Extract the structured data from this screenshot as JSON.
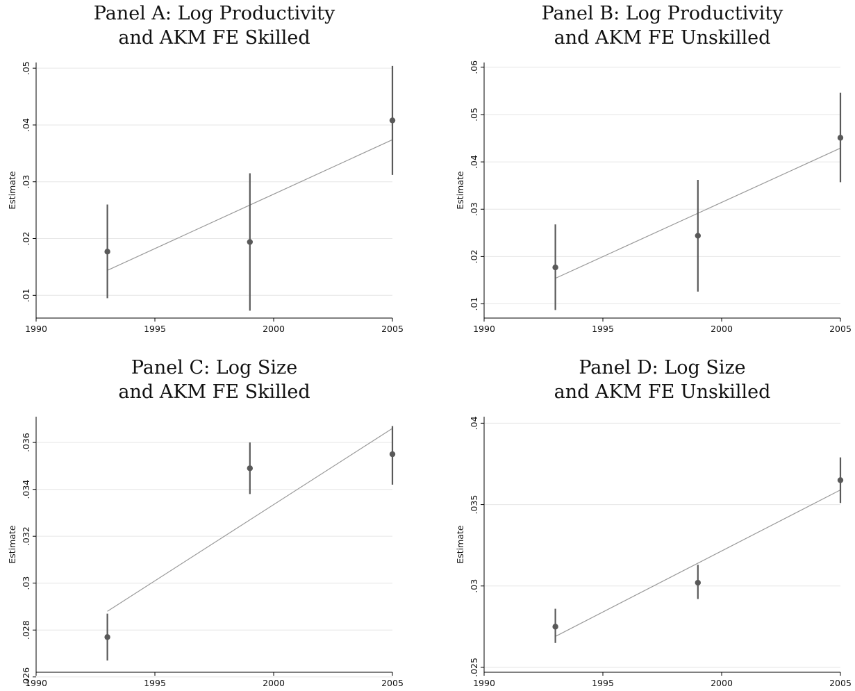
{
  "colors": {
    "marker": "#595959",
    "ci": "#595959",
    "fit": "#999999",
    "grid": "#e6e6e6",
    "axis": "#000000"
  },
  "chart_data": [
    {
      "type": "scatter",
      "title": "Panel A: Log Productivity\nand AKM FE Skilled",
      "ylabel": "Estimate",
      "xlabel": "",
      "xlim": [
        1990,
        2005
      ],
      "ylim": [
        0.006,
        0.051
      ],
      "xticks": [
        1990,
        1995,
        2000,
        2005
      ],
      "xtick_labels": [
        "1990",
        "1995",
        "2000",
        "2005"
      ],
      "yticks": [
        0.01,
        0.02,
        0.03,
        0.04,
        0.05
      ],
      "ytick_labels": [
        ".01",
        ".02",
        ".03",
        ".04",
        ".05"
      ],
      "grid": true,
      "points": [
        {
          "x": 1993,
          "y": 0.0177,
          "lo": 0.0095,
          "hi": 0.026
        },
        {
          "x": 1999,
          "y": 0.0194,
          "lo": 0.0073,
          "hi": 0.0315
        },
        {
          "x": 2005,
          "y": 0.0408,
          "lo": 0.0312,
          "hi": 0.0504
        }
      ],
      "fit": {
        "x": [
          1993,
          2005
        ],
        "y": [
          0.0144,
          0.0374
        ]
      }
    },
    {
      "type": "scatter",
      "title": "Panel B: Log Productivity\nand AKM FE Unskilled",
      "ylabel": "Estimate",
      "xlabel": "",
      "xlim": [
        1990,
        2005
      ],
      "ylim": [
        0.007,
        0.061
      ],
      "xticks": [
        1990,
        1995,
        2000,
        2005
      ],
      "xtick_labels": [
        "1990",
        "1995",
        "2000",
        "2005"
      ],
      "yticks": [
        0.01,
        0.02,
        0.03,
        0.04,
        0.05,
        0.06
      ],
      "ytick_labels": [
        ".01",
        ".02",
        ".03",
        ".04",
        ".05",
        ".06"
      ],
      "grid": true,
      "points": [
        {
          "x": 1993,
          "y": 0.0177,
          "lo": 0.0087,
          "hi": 0.0268
        },
        {
          "x": 1999,
          "y": 0.0244,
          "lo": 0.0126,
          "hi": 0.0362
        },
        {
          "x": 2005,
          "y": 0.0451,
          "lo": 0.0357,
          "hi": 0.0546
        }
      ],
      "fit": {
        "x": [
          1993,
          2005
        ],
        "y": [
          0.0154,
          0.0429
        ]
      }
    },
    {
      "type": "scatter",
      "title": "Panel C: Log Size\nand AKM FE Skilled",
      "ylabel": "Estimate",
      "xlabel": "",
      "xlim": [
        1990,
        2005
      ],
      "ylim": [
        0.0262,
        0.0371
      ],
      "xticks": [
        1990,
        1995,
        2000,
        2005
      ],
      "xtick_labels": [
        "1990",
        "1995",
        "2000",
        "2005"
      ],
      "yticks": [
        0.026,
        0.028,
        0.03,
        0.032,
        0.034,
        0.036
      ],
      "ytick_labels": [
        ".026",
        ".028",
        ".03",
        ".032",
        ".034",
        ".036"
      ],
      "grid": true,
      "points": [
        {
          "x": 1993,
          "y": 0.0277,
          "lo": 0.0267,
          "hi": 0.0287
        },
        {
          "x": 1999,
          "y": 0.0349,
          "lo": 0.0338,
          "hi": 0.036
        },
        {
          "x": 2005,
          "y": 0.0355,
          "lo": 0.0342,
          "hi": 0.0367
        }
      ],
      "fit": {
        "x": [
          1993,
          2005
        ],
        "y": [
          0.0288,
          0.0366
        ]
      }
    },
    {
      "type": "scatter",
      "title": "Panel D: Log Size\nand AKM FE Unskilled",
      "ylabel": "Estimate",
      "xlabel": "",
      "xlim": [
        1990,
        2005
      ],
      "ylim": [
        0.0247,
        0.0404
      ],
      "xticks": [
        1990,
        1995,
        2000,
        2005
      ],
      "xtick_labels": [
        "1990",
        "1995",
        "2000",
        "2005"
      ],
      "yticks": [
        0.025,
        0.03,
        0.035,
        0.04
      ],
      "ytick_labels": [
        ".025",
        ".03",
        ".035",
        ".04"
      ],
      "grid": true,
      "points": [
        {
          "x": 1993,
          "y": 0.0275,
          "lo": 0.0265,
          "hi": 0.0286
        },
        {
          "x": 1999,
          "y": 0.0302,
          "lo": 0.0292,
          "hi": 0.0313
        },
        {
          "x": 2005,
          "y": 0.0365,
          "lo": 0.0351,
          "hi": 0.0379
        }
      ],
      "fit": {
        "x": [
          1993,
          2005
        ],
        "y": [
          0.0269,
          0.0359
        ]
      }
    }
  ]
}
